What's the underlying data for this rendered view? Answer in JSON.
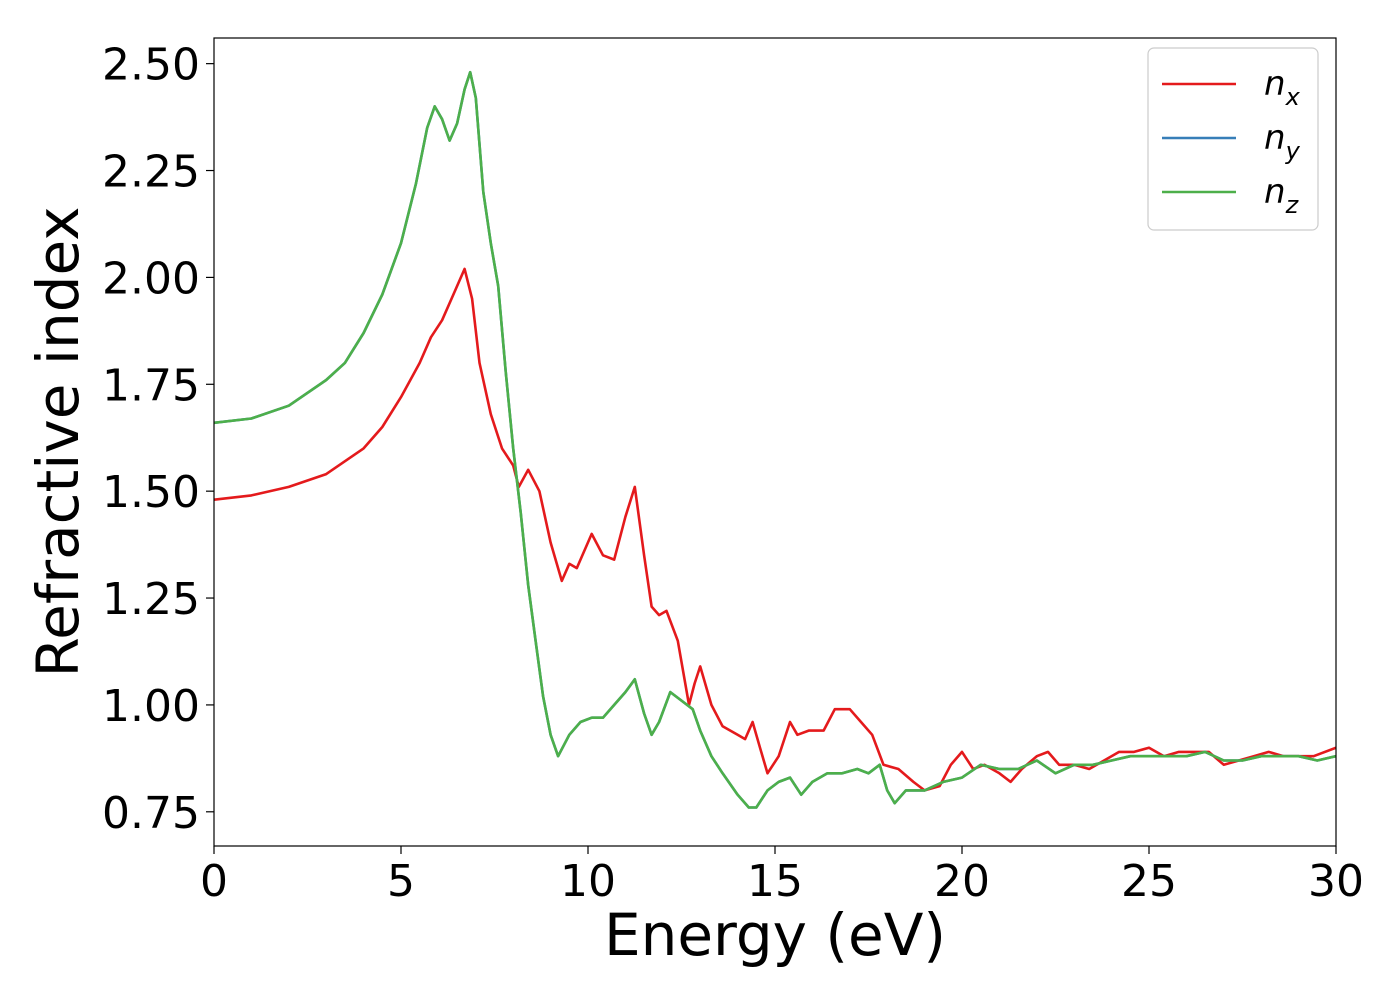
{
  "chart_data": {
    "type": "line",
    "title": "",
    "xlabel": "Energy (eV)",
    "ylabel": "Refractive index",
    "xlim": [
      0,
      30
    ],
    "ylim": [
      0.67,
      2.56
    ],
    "xticks": [
      0,
      5,
      10,
      15,
      20,
      25,
      30
    ],
    "xtick_labels": [
      "0",
      "5",
      "10",
      "15",
      "20",
      "25",
      "30"
    ],
    "yticks": [
      0.75,
      1.0,
      1.25,
      1.5,
      1.75,
      2.0,
      2.25,
      2.5
    ],
    "ytick_labels": [
      "0.75",
      "1.00",
      "1.25",
      "1.50",
      "1.75",
      "2.00",
      "2.25",
      "2.50"
    ],
    "grid": false,
    "legend_position": "top-right",
    "series": [
      {
        "name": "n_x",
        "label_base": "n",
        "label_sub": "x",
        "color": "#e41a1c",
        "points": [
          [
            0,
            1.48
          ],
          [
            1,
            1.49
          ],
          [
            2,
            1.51
          ],
          [
            3,
            1.54
          ],
          [
            4,
            1.6
          ],
          [
            4.5,
            1.65
          ],
          [
            5,
            1.72
          ],
          [
            5.5,
            1.8
          ],
          [
            5.8,
            1.86
          ],
          [
            6.1,
            1.9
          ],
          [
            6.4,
            1.96
          ],
          [
            6.7,
            2.02
          ],
          [
            6.9,
            1.95
          ],
          [
            7.1,
            1.8
          ],
          [
            7.4,
            1.68
          ],
          [
            7.7,
            1.6
          ],
          [
            8.0,
            1.56
          ],
          [
            8.15,
            1.51
          ],
          [
            8.4,
            1.55
          ],
          [
            8.7,
            1.5
          ],
          [
            9.0,
            1.38
          ],
          [
            9.3,
            1.29
          ],
          [
            9.5,
            1.33
          ],
          [
            9.7,
            1.32
          ],
          [
            10.1,
            1.4
          ],
          [
            10.4,
            1.35
          ],
          [
            10.7,
            1.34
          ],
          [
            11.0,
            1.44
          ],
          [
            11.25,
            1.51
          ],
          [
            11.5,
            1.35
          ],
          [
            11.7,
            1.23
          ],
          [
            11.9,
            1.21
          ],
          [
            12.1,
            1.22
          ],
          [
            12.4,
            1.15
          ],
          [
            12.7,
            1.0
          ],
          [
            12.85,
            1.05
          ],
          [
            13.0,
            1.09
          ],
          [
            13.3,
            1.0
          ],
          [
            13.6,
            0.95
          ],
          [
            14.0,
            0.93
          ],
          [
            14.2,
            0.92
          ],
          [
            14.4,
            0.96
          ],
          [
            14.6,
            0.9
          ],
          [
            14.8,
            0.84
          ],
          [
            15.1,
            0.88
          ],
          [
            15.4,
            0.96
          ],
          [
            15.6,
            0.93
          ],
          [
            15.9,
            0.94
          ],
          [
            16.3,
            0.94
          ],
          [
            16.6,
            0.99
          ],
          [
            17.0,
            0.99
          ],
          [
            17.3,
            0.96
          ],
          [
            17.6,
            0.93
          ],
          [
            17.9,
            0.86
          ],
          [
            18.3,
            0.85
          ],
          [
            18.7,
            0.82
          ],
          [
            19.0,
            0.8
          ],
          [
            19.4,
            0.81
          ],
          [
            19.7,
            0.86
          ],
          [
            20.0,
            0.89
          ],
          [
            20.3,
            0.85
          ],
          [
            20.6,
            0.86
          ],
          [
            21.0,
            0.84
          ],
          [
            21.3,
            0.82
          ],
          [
            21.6,
            0.85
          ],
          [
            22.0,
            0.88
          ],
          [
            22.3,
            0.89
          ],
          [
            22.6,
            0.86
          ],
          [
            23.0,
            0.86
          ],
          [
            23.4,
            0.85
          ],
          [
            23.8,
            0.87
          ],
          [
            24.2,
            0.89
          ],
          [
            24.6,
            0.89
          ],
          [
            25.0,
            0.9
          ],
          [
            25.4,
            0.88
          ],
          [
            25.8,
            0.89
          ],
          [
            26.2,
            0.89
          ],
          [
            26.6,
            0.89
          ],
          [
            27.0,
            0.86
          ],
          [
            27.4,
            0.87
          ],
          [
            27.8,
            0.88
          ],
          [
            28.2,
            0.89
          ],
          [
            28.6,
            0.88
          ],
          [
            29.0,
            0.88
          ],
          [
            29.4,
            0.88
          ],
          [
            30.0,
            0.9
          ]
        ]
      },
      {
        "name": "n_y",
        "label_base": "n",
        "label_sub": "y",
        "color": "#377eb8",
        "points": [
          [
            0,
            1.66
          ],
          [
            1,
            1.67
          ],
          [
            2,
            1.7
          ],
          [
            3,
            1.76
          ],
          [
            3.5,
            1.8
          ],
          [
            4,
            1.87
          ],
          [
            4.5,
            1.96
          ],
          [
            5,
            2.08
          ],
          [
            5.4,
            2.22
          ],
          [
            5.7,
            2.35
          ],
          [
            5.9,
            2.4
          ],
          [
            6.1,
            2.37
          ],
          [
            6.3,
            2.32
          ],
          [
            6.5,
            2.36
          ],
          [
            6.7,
            2.44
          ],
          [
            6.85,
            2.48
          ],
          [
            7.0,
            2.42
          ],
          [
            7.2,
            2.2
          ],
          [
            7.4,
            2.08
          ],
          [
            7.6,
            1.98
          ],
          [
            7.8,
            1.78
          ],
          [
            8.0,
            1.6
          ],
          [
            8.2,
            1.45
          ],
          [
            8.4,
            1.28
          ],
          [
            8.6,
            1.15
          ],
          [
            8.8,
            1.02
          ],
          [
            9.0,
            0.93
          ],
          [
            9.2,
            0.88
          ],
          [
            9.5,
            0.93
          ],
          [
            9.8,
            0.96
          ],
          [
            10.1,
            0.97
          ],
          [
            10.4,
            0.97
          ],
          [
            10.7,
            1.0
          ],
          [
            11.0,
            1.03
          ],
          [
            11.25,
            1.06
          ],
          [
            11.5,
            0.98
          ],
          [
            11.7,
            0.93
          ],
          [
            11.9,
            0.96
          ],
          [
            12.2,
            1.03
          ],
          [
            12.5,
            1.01
          ],
          [
            12.8,
            0.99
          ],
          [
            13.0,
            0.94
          ],
          [
            13.3,
            0.88
          ],
          [
            13.6,
            0.84
          ],
          [
            14.0,
            0.79
          ],
          [
            14.3,
            0.76
          ],
          [
            14.5,
            0.76
          ],
          [
            14.8,
            0.8
          ],
          [
            15.1,
            0.82
          ],
          [
            15.4,
            0.83
          ],
          [
            15.7,
            0.79
          ],
          [
            16.0,
            0.82
          ],
          [
            16.4,
            0.84
          ],
          [
            16.8,
            0.84
          ],
          [
            17.2,
            0.85
          ],
          [
            17.5,
            0.84
          ],
          [
            17.8,
            0.86
          ],
          [
            18.0,
            0.8
          ],
          [
            18.2,
            0.77
          ],
          [
            18.5,
            0.8
          ],
          [
            19.0,
            0.8
          ],
          [
            19.5,
            0.82
          ],
          [
            20.0,
            0.83
          ],
          [
            20.5,
            0.86
          ],
          [
            21.0,
            0.85
          ],
          [
            21.5,
            0.85
          ],
          [
            22.0,
            0.87
          ],
          [
            22.5,
            0.84
          ],
          [
            23.0,
            0.86
          ],
          [
            23.5,
            0.86
          ],
          [
            24.0,
            0.87
          ],
          [
            24.5,
            0.88
          ],
          [
            25.0,
            0.88
          ],
          [
            25.5,
            0.88
          ],
          [
            26.0,
            0.88
          ],
          [
            26.5,
            0.89
          ],
          [
            27.0,
            0.87
          ],
          [
            27.5,
            0.87
          ],
          [
            28.0,
            0.88
          ],
          [
            28.5,
            0.88
          ],
          [
            29.0,
            0.88
          ],
          [
            29.5,
            0.87
          ],
          [
            30.0,
            0.88
          ]
        ]
      },
      {
        "name": "n_z",
        "label_base": "n",
        "label_sub": "z",
        "color": "#4daf4a",
        "points": [
          [
            0,
            1.66
          ],
          [
            1,
            1.67
          ],
          [
            2,
            1.7
          ],
          [
            3,
            1.76
          ],
          [
            3.5,
            1.8
          ],
          [
            4,
            1.87
          ],
          [
            4.5,
            1.96
          ],
          [
            5,
            2.08
          ],
          [
            5.4,
            2.22
          ],
          [
            5.7,
            2.35
          ],
          [
            5.9,
            2.4
          ],
          [
            6.1,
            2.37
          ],
          [
            6.3,
            2.32
          ],
          [
            6.5,
            2.36
          ],
          [
            6.7,
            2.44
          ],
          [
            6.85,
            2.48
          ],
          [
            7.0,
            2.42
          ],
          [
            7.2,
            2.2
          ],
          [
            7.4,
            2.08
          ],
          [
            7.6,
            1.98
          ],
          [
            7.8,
            1.78
          ],
          [
            8.0,
            1.6
          ],
          [
            8.2,
            1.45
          ],
          [
            8.4,
            1.28
          ],
          [
            8.6,
            1.15
          ],
          [
            8.8,
            1.02
          ],
          [
            9.0,
            0.93
          ],
          [
            9.2,
            0.88
          ],
          [
            9.5,
            0.93
          ],
          [
            9.8,
            0.96
          ],
          [
            10.1,
            0.97
          ],
          [
            10.4,
            0.97
          ],
          [
            10.7,
            1.0
          ],
          [
            11.0,
            1.03
          ],
          [
            11.25,
            1.06
          ],
          [
            11.5,
            0.98
          ],
          [
            11.7,
            0.93
          ],
          [
            11.9,
            0.96
          ],
          [
            12.2,
            1.03
          ],
          [
            12.5,
            1.01
          ],
          [
            12.8,
            0.99
          ],
          [
            13.0,
            0.94
          ],
          [
            13.3,
            0.88
          ],
          [
            13.6,
            0.84
          ],
          [
            14.0,
            0.79
          ],
          [
            14.3,
            0.76
          ],
          [
            14.5,
            0.76
          ],
          [
            14.8,
            0.8
          ],
          [
            15.1,
            0.82
          ],
          [
            15.4,
            0.83
          ],
          [
            15.7,
            0.79
          ],
          [
            16.0,
            0.82
          ],
          [
            16.4,
            0.84
          ],
          [
            16.8,
            0.84
          ],
          [
            17.2,
            0.85
          ],
          [
            17.5,
            0.84
          ],
          [
            17.8,
            0.86
          ],
          [
            18.0,
            0.8
          ],
          [
            18.2,
            0.77
          ],
          [
            18.5,
            0.8
          ],
          [
            19.0,
            0.8
          ],
          [
            19.5,
            0.82
          ],
          [
            20.0,
            0.83
          ],
          [
            20.5,
            0.86
          ],
          [
            21.0,
            0.85
          ],
          [
            21.5,
            0.85
          ],
          [
            22.0,
            0.87
          ],
          [
            22.5,
            0.84
          ],
          [
            23.0,
            0.86
          ],
          [
            23.5,
            0.86
          ],
          [
            24.0,
            0.87
          ],
          [
            24.5,
            0.88
          ],
          [
            25.0,
            0.88
          ],
          [
            25.5,
            0.88
          ],
          [
            26.0,
            0.88
          ],
          [
            26.5,
            0.89
          ],
          [
            27.0,
            0.87
          ],
          [
            27.5,
            0.87
          ],
          [
            28.0,
            0.88
          ],
          [
            28.5,
            0.88
          ],
          [
            29.0,
            0.88
          ],
          [
            29.5,
            0.87
          ],
          [
            30.0,
            0.88
          ]
        ]
      }
    ]
  }
}
